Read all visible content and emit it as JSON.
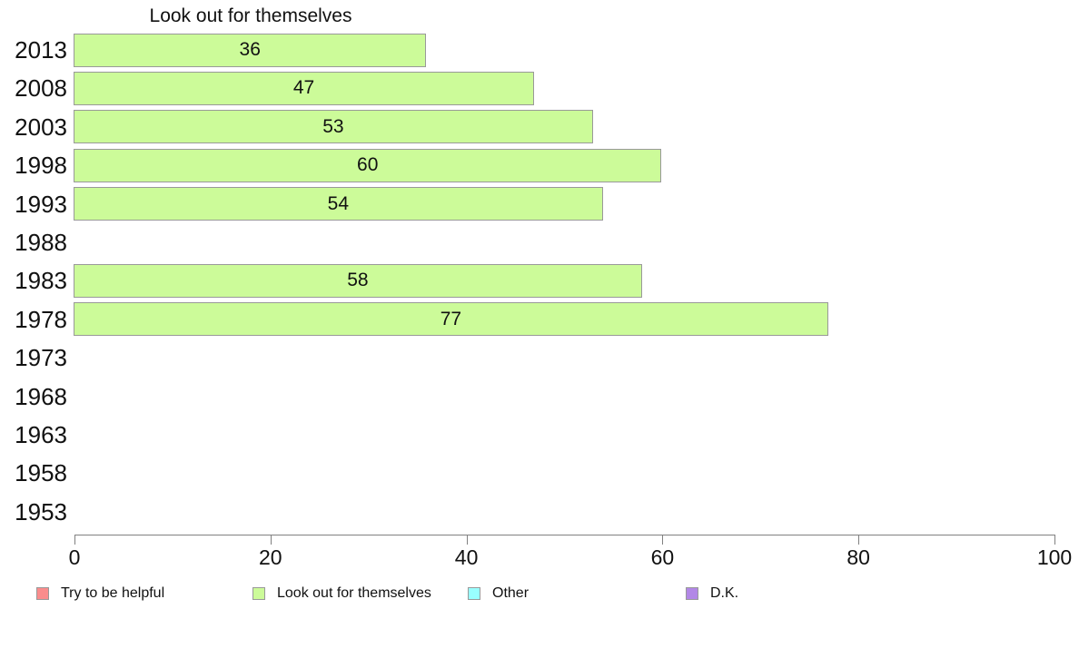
{
  "chart_data": {
    "type": "bar",
    "orientation": "horizontal",
    "title": "Look out for themselves",
    "series_name": "Look out for themselves",
    "categories": [
      "2013",
      "2008",
      "2003",
      "1998",
      "1993",
      "1988",
      "1983",
      "1978",
      "1973",
      "1968",
      "1963",
      "1958",
      "1953"
    ],
    "values": [
      36,
      47,
      53,
      60,
      54,
      null,
      58,
      77,
      null,
      null,
      null,
      null,
      null
    ],
    "xlabel": "",
    "ylabel": "",
    "xlim": [
      0,
      100
    ],
    "x_ticks": [
      0,
      20,
      40,
      60,
      80,
      100
    ],
    "grid": false,
    "bar_color": "#ccfb99",
    "bar_border_color": "#999999",
    "axis_color": "#808080",
    "text_color": "#111111",
    "legend_position": "bottom",
    "legend": [
      {
        "label": "Try to be helpful",
        "color": "#fa8c8c"
      },
      {
        "label": "Look out for themselves",
        "color": "#ccfb99"
      },
      {
        "label": "Other",
        "color": "#99ffff"
      },
      {
        "label": "D.K.",
        "color": "#b287e6"
      }
    ]
  }
}
